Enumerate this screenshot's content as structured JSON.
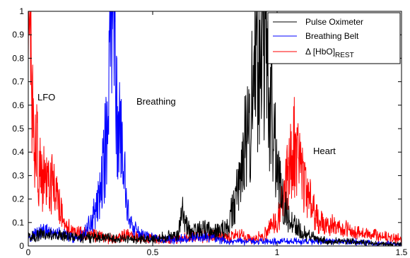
{
  "chart_data": {
    "type": "line",
    "title": "",
    "xlabel": "",
    "ylabel": "",
    "xlim": [
      0,
      1.5
    ],
    "ylim": [
      0,
      1
    ],
    "x_ticks": [
      0,
      0.5,
      1,
      1.5
    ],
    "x_tick_labels": [
      "0",
      "0.5",
      "1",
      "1.5"
    ],
    "y_ticks": [
      0,
      0.1,
      0.2,
      0.3,
      0.4,
      0.5,
      0.6,
      0.7,
      0.8,
      0.9,
      1
    ],
    "y_tick_labels": [
      "0",
      "0.1",
      "0.2",
      "0.3",
      "0.4",
      "0.5",
      "0.6",
      "0.7",
      "0.8",
      "0.9",
      "1"
    ],
    "grid": false,
    "legend_position": "top-right",
    "legend": [
      {
        "name": "Pulse Oximeter",
        "color": "#000000"
      },
      {
        "name": "Breathing Belt",
        "color": "#0000ff"
      },
      {
        "name": "Δ [HbO]",
        "subscript": "REST",
        "color": "#ff0000"
      }
    ],
    "annotations": [
      {
        "text": "LFO",
        "x": 0.03,
        "y": 0.63
      },
      {
        "text": "Breathing",
        "x": 0.5,
        "y": 0.61
      },
      {
        "text": "Heart",
        "x": 1.21,
        "y": 0.4
      }
    ],
    "series": [
      {
        "name": "Pulse Oximeter",
        "color": "#000000",
        "noise_amplitude": 0.015,
        "points": [
          [
            0,
            0.04
          ],
          [
            0.05,
            0.05
          ],
          [
            0.1,
            0.05
          ],
          [
            0.2,
            0.04
          ],
          [
            0.3,
            0.04
          ],
          [
            0.4,
            0.03
          ],
          [
            0.5,
            0.03
          ],
          [
            0.6,
            0.05
          ],
          [
            0.62,
            0.15
          ],
          [
            0.65,
            0.06
          ],
          [
            0.7,
            0.08
          ],
          [
            0.75,
            0.07
          ],
          [
            0.8,
            0.08
          ],
          [
            0.83,
            0.2
          ],
          [
            0.86,
            0.35
          ],
          [
            0.88,
            0.55
          ],
          [
            0.9,
            0.65
          ],
          [
            0.92,
            0.9
          ],
          [
            0.93,
            0.88
          ],
          [
            0.94,
            1.0
          ],
          [
            0.95,
            0.95
          ],
          [
            0.97,
            0.7
          ],
          [
            0.99,
            0.45
          ],
          [
            1.0,
            0.35
          ],
          [
            1.02,
            0.2
          ],
          [
            1.05,
            0.12
          ],
          [
            1.08,
            0.08
          ],
          [
            1.12,
            0.05
          ],
          [
            1.2,
            0.02
          ],
          [
            1.3,
            0.02
          ],
          [
            1.4,
            0.01
          ],
          [
            1.5,
            0.01
          ]
        ]
      },
      {
        "name": "Breathing Belt",
        "color": "#0000ff",
        "noise_amplitude": 0.015,
        "points": [
          [
            0,
            0.04
          ],
          [
            0.05,
            0.07
          ],
          [
            0.1,
            0.06
          ],
          [
            0.15,
            0.05
          ],
          [
            0.2,
            0.03
          ],
          [
            0.25,
            0.1
          ],
          [
            0.28,
            0.18
          ],
          [
            0.3,
            0.35
          ],
          [
            0.32,
            0.55
          ],
          [
            0.33,
            0.85
          ],
          [
            0.34,
            1.0
          ],
          [
            0.35,
            0.8
          ],
          [
            0.36,
            0.6
          ],
          [
            0.38,
            0.35
          ],
          [
            0.4,
            0.18
          ],
          [
            0.42,
            0.08
          ],
          [
            0.45,
            0.05
          ],
          [
            0.5,
            0.04
          ],
          [
            0.55,
            0.03
          ],
          [
            0.6,
            0.03
          ],
          [
            0.7,
            0.04
          ],
          [
            0.75,
            0.04
          ],
          [
            0.8,
            0.02
          ],
          [
            0.9,
            0.02
          ],
          [
            1.0,
            0.02
          ],
          [
            1.1,
            0.02
          ],
          [
            1.2,
            0.02
          ],
          [
            1.3,
            0.02
          ],
          [
            1.4,
            0.01
          ],
          [
            1.5,
            0.01
          ]
        ]
      },
      {
        "name": "Δ [HbO]REST",
        "color": "#ff0000",
        "noise_amplitude": 0.02,
        "points": [
          [
            0,
            1.0
          ],
          [
            0.01,
            0.85
          ],
          [
            0.02,
            0.55
          ],
          [
            0.03,
            0.5
          ],
          [
            0.04,
            0.38
          ],
          [
            0.06,
            0.32
          ],
          [
            0.08,
            0.25
          ],
          [
            0.1,
            0.3
          ],
          [
            0.12,
            0.2
          ],
          [
            0.14,
            0.12
          ],
          [
            0.16,
            0.08
          ],
          [
            0.2,
            0.06
          ],
          [
            0.25,
            0.05
          ],
          [
            0.3,
            0.04
          ],
          [
            0.35,
            0.03
          ],
          [
            0.4,
            0.05
          ],
          [
            0.45,
            0.04
          ],
          [
            0.5,
            0.03
          ],
          [
            0.6,
            0.03
          ],
          [
            0.7,
            0.05
          ],
          [
            0.8,
            0.04
          ],
          [
            0.85,
            0.05
          ],
          [
            0.9,
            0.03
          ],
          [
            0.95,
            0.05
          ],
          [
            1.0,
            0.12
          ],
          [
            1.02,
            0.2
          ],
          [
            1.04,
            0.3
          ],
          [
            1.06,
            0.42
          ],
          [
            1.07,
            0.45
          ],
          [
            1.08,
            0.38
          ],
          [
            1.1,
            0.3
          ],
          [
            1.13,
            0.22
          ],
          [
            1.16,
            0.12
          ],
          [
            1.2,
            0.1
          ],
          [
            1.25,
            0.08
          ],
          [
            1.3,
            0.06
          ],
          [
            1.35,
            0.05
          ],
          [
            1.4,
            0.05
          ],
          [
            1.45,
            0.04
          ],
          [
            1.5,
            0.03
          ]
        ]
      }
    ]
  }
}
